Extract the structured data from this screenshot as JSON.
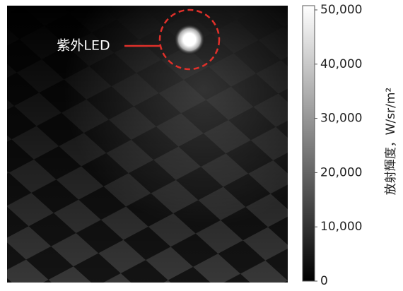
{
  "chart_data": {
    "type": "image",
    "annotation": "紫外LED",
    "colorbar_label": "放射輝度，W/sr/m²",
    "clim": [
      0,
      50000
    ],
    "cticks": [
      0,
      {
        "value": 10000,
        "label": "10,000"
      },
      {
        "value": 20000,
        "label": "20,000"
      },
      {
        "value": 30000,
        "label": "30,000"
      },
      {
        "value": 40000,
        "label": "40,000"
      },
      {
        "value": 50000,
        "label": "50,000"
      }
    ],
    "colormap": [
      "#000000",
      "#ffffff"
    ]
  }
}
